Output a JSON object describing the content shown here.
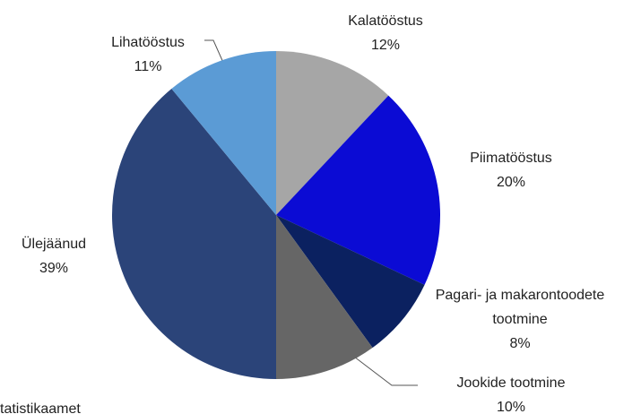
{
  "chart_data": {
    "type": "pie",
    "categories": [
      "Kalatööstus",
      "Piimatööstus",
      "Pagari- ja makarontoodete tootmine",
      "Jookide tootmine",
      "Ülejäänud",
      "Lihatööstus"
    ],
    "values": [
      12,
      20,
      8,
      10,
      39,
      11
    ],
    "value_labels": [
      "12%",
      "20%",
      "8%",
      "10%",
      "39%",
      "11%"
    ],
    "colors": [
      "#a6a6a6",
      "#0b0bd4",
      "#0b2160",
      "#666666",
      "#2b4479",
      "#5b9bd5"
    ],
    "source": "tatistikaamet"
  }
}
